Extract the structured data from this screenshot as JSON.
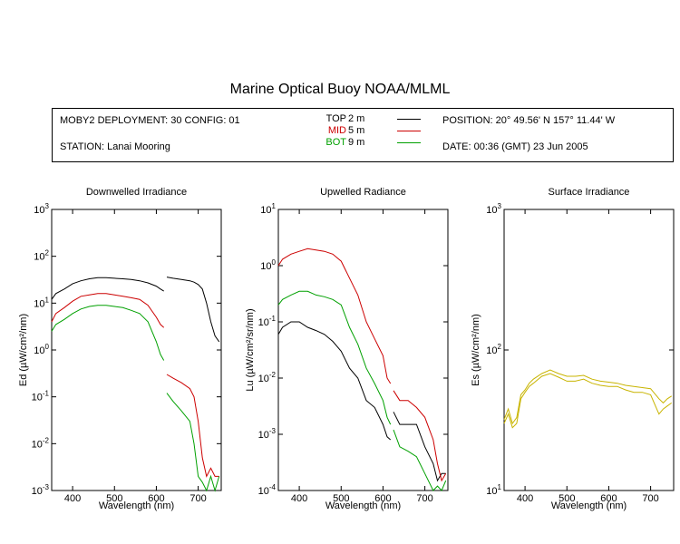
{
  "title": "Marine Optical Buoy NOAA/MLML",
  "header": {
    "deployment": "MOBY2 DEPLOYMENT: 30 CONFIG: 01",
    "station": "STATION: Lanai Mooring",
    "position": "POSITION: 20° 49.56' N   157° 11.44' W",
    "date": "DATE: 00:36 (GMT) 23 Jun 2005",
    "legend": [
      {
        "label": "TOP",
        "depth": "2  m",
        "color": "#000000"
      },
      {
        "label": "MID",
        "depth": "5  m",
        "color": "#cc0000"
      },
      {
        "label": "BOT",
        "depth": "9  m",
        "color": "#00a000"
      }
    ]
  },
  "chart_data": [
    {
      "type": "line",
      "title": "Downwelled Irradiance",
      "xlabel": "Wavelength (nm)",
      "ylabel": "Ed  (µW/cm²/nm)",
      "xlim": [
        350,
        755
      ],
      "ylim": [
        0.001,
        1000
      ],
      "yscale": "log",
      "xticks": [
        400,
        500,
        600,
        700
      ],
      "yticks": [
        0.001,
        0.01,
        0.1,
        1,
        10,
        100,
        1000
      ],
      "yticklabels": [
        [
          "10",
          "-3"
        ],
        [
          "10",
          "-2"
        ],
        [
          "10",
          "-1"
        ],
        [
          "10",
          "0"
        ],
        [
          "10",
          "1"
        ],
        [
          "10",
          "2"
        ],
        [
          "10",
          "3"
        ]
      ],
      "series": [
        {
          "name": "TOP",
          "color": "#000000",
          "segments": [
            {
              "x": [
                350,
                360,
                380,
                400,
                420,
                440,
                460,
                480,
                500,
                520,
                540,
                560,
                580,
                600,
                610,
                618
              ],
              "y": [
                12,
                16,
                20,
                26,
                30,
                33,
                35,
                35,
                34,
                33,
                32,
                30,
                27,
                23,
                20,
                18
              ]
            },
            {
              "x": [
                625,
                640,
                660,
                680,
                690,
                700,
                710,
                720,
                730,
                740,
                750
              ],
              "y": [
                36,
                34,
                32,
                30,
                28,
                25,
                20,
                10,
                4,
                2,
                1.5
              ]
            }
          ]
        },
        {
          "name": "MID",
          "color": "#cc0000",
          "segments": [
            {
              "x": [
                350,
                360,
                380,
                400,
                420,
                440,
                460,
                480,
                500,
                520,
                540,
                560,
                580,
                600,
                610,
                618
              ],
              "y": [
                4,
                6,
                8,
                11,
                14,
                15,
                16,
                16,
                15,
                14,
                13,
                12,
                9,
                5,
                3.5,
                3
              ]
            },
            {
              "x": [
                625,
                640,
                660,
                680,
                690,
                700,
                710,
                720,
                730,
                740,
                750
              ],
              "y": [
                0.3,
                0.25,
                0.2,
                0.15,
                0.1,
                0.03,
                0.005,
                0.002,
                0.003,
                0.002,
                0.002
              ]
            }
          ]
        },
        {
          "name": "BOT",
          "color": "#00a000",
          "segments": [
            {
              "x": [
                350,
                360,
                380,
                400,
                420,
                440,
                460,
                480,
                500,
                520,
                540,
                560,
                580,
                600,
                610,
                618
              ],
              "y": [
                2.5,
                3.5,
                4.5,
                6,
                7.5,
                8.5,
                9,
                9,
                8.5,
                8,
                7,
                6,
                4,
                1.5,
                0.8,
                0.6
              ]
            },
            {
              "x": [
                625,
                640,
                660,
                680,
                690,
                700,
                710,
                720,
                730,
                740,
                750
              ],
              "y": [
                0.12,
                0.08,
                0.05,
                0.03,
                0.01,
                0.002,
                0.0015,
                0.001,
                0.002,
                0.001,
                0.002
              ]
            }
          ]
        }
      ]
    },
    {
      "type": "line",
      "title": "Upwelled Radiance",
      "xlabel": "Wavelength (nm)",
      "ylabel": "Lu  (µW/cm²/sr/nm)",
      "xlim": [
        350,
        755
      ],
      "ylim": [
        0.0001,
        10
      ],
      "yscale": "log",
      "xticks": [
        400,
        500,
        600,
        700
      ],
      "yticks": [
        0.0001,
        0.001,
        0.01,
        0.1,
        1,
        10
      ],
      "yticklabels": [
        [
          "10",
          "-4"
        ],
        [
          "10",
          "-3"
        ],
        [
          "10",
          "-2"
        ],
        [
          "10",
          "-1"
        ],
        [
          "10",
          "0"
        ],
        [
          "10",
          "1"
        ]
      ],
      "series": [
        {
          "name": "TOP",
          "color": "#000000",
          "segments": [
            {
              "x": [
                350,
                360,
                380,
                400,
                420,
                440,
                460,
                480,
                500,
                520,
                540,
                560,
                580,
                600,
                610,
                618
              ],
              "y": [
                0.06,
                0.08,
                0.1,
                0.1,
                0.08,
                0.07,
                0.06,
                0.045,
                0.03,
                0.015,
                0.01,
                0.004,
                0.003,
                0.0015,
                0.0009,
                0.0008
              ]
            },
            {
              "x": [
                625,
                640,
                660,
                680,
                700,
                720,
                730,
                740,
                750
              ],
              "y": [
                0.0025,
                0.0015,
                0.0015,
                0.0015,
                0.0006,
                0.0003,
                0.00015,
                0.0002,
                0.0002
              ]
            }
          ]
        },
        {
          "name": "MID",
          "color": "#cc0000",
          "segments": [
            {
              "x": [
                350,
                360,
                380,
                400,
                420,
                440,
                460,
                480,
                500,
                520,
                540,
                560,
                580,
                600,
                610,
                618
              ],
              "y": [
                1,
                1.3,
                1.6,
                1.8,
                2,
                1.9,
                1.8,
                1.6,
                1.2,
                0.6,
                0.3,
                0.1,
                0.05,
                0.025,
                0.01,
                0.008
              ]
            },
            {
              "x": [
                625,
                640,
                660,
                680,
                700,
                720,
                730,
                740,
                750
              ],
              "y": [
                0.006,
                0.004,
                0.004,
                0.003,
                0.002,
                0.0008,
                0.0003,
                0.00015,
                0.0002
              ]
            }
          ]
        },
        {
          "name": "BOT",
          "color": "#00a000",
          "segments": [
            {
              "x": [
                350,
                360,
                380,
                400,
                420,
                440,
                460,
                480,
                500,
                520,
                540,
                560,
                580,
                600,
                610,
                618
              ],
              "y": [
                0.2,
                0.25,
                0.3,
                0.35,
                0.35,
                0.3,
                0.28,
                0.25,
                0.2,
                0.08,
                0.04,
                0.015,
                0.008,
                0.004,
                0.002,
                0.0015
              ]
            },
            {
              "x": [
                625,
                640,
                660,
                680,
                700,
                720,
                730,
                740,
                750
              ],
              "y": [
                0.0012,
                0.0006,
                0.0005,
                0.0004,
                0.0002,
                0.0001,
                0.00012,
                0.0001,
                0.00015
              ]
            }
          ]
        }
      ]
    },
    {
      "type": "line",
      "title": "Surface Irradiance",
      "xlabel": "Wavelength (nm)",
      "ylabel": "Es  (µW/cm²/nm)",
      "xlim": [
        350,
        755
      ],
      "ylim": [
        10,
        1000
      ],
      "yscale": "log",
      "xticks": [
        400,
        500,
        600,
        700
      ],
      "yticks": [
        10,
        100,
        1000
      ],
      "yticklabels": [
        [
          "10",
          "1"
        ],
        [
          "10",
          "2"
        ],
        [
          "10",
          "3"
        ]
      ],
      "series": [
        {
          "name": "",
          "color": "#c8b400",
          "segments": [
            {
              "x": [
                350,
                360,
                370,
                380,
                390,
                400,
                410,
                420,
                440,
                460,
                480,
                500,
                520,
                540,
                560,
                580,
                600,
                620,
                640,
                660,
                680,
                700,
                720,
                730,
                740,
                750
              ],
              "y": [
                30,
                35,
                28,
                30,
                45,
                50,
                55,
                58,
                65,
                68,
                64,
                60,
                60,
                62,
                58,
                56,
                55,
                55,
                52,
                50,
                50,
                48,
                35,
                38,
                40,
                42
              ]
            },
            {
              "x": [
                350,
                360,
                370,
                380,
                390,
                400,
                410,
                420,
                440,
                460,
                480,
                500,
                520,
                540,
                560,
                580,
                600,
                620,
                640,
                660,
                680,
                700,
                720,
                730,
                740,
                750
              ],
              "y": [
                32,
                38,
                30,
                33,
                48,
                52,
                58,
                62,
                68,
                72,
                68,
                65,
                65,
                66,
                62,
                60,
                59,
                58,
                56,
                55,
                54,
                53,
                45,
                42,
                45,
                47
              ]
            }
          ]
        }
      ]
    }
  ]
}
